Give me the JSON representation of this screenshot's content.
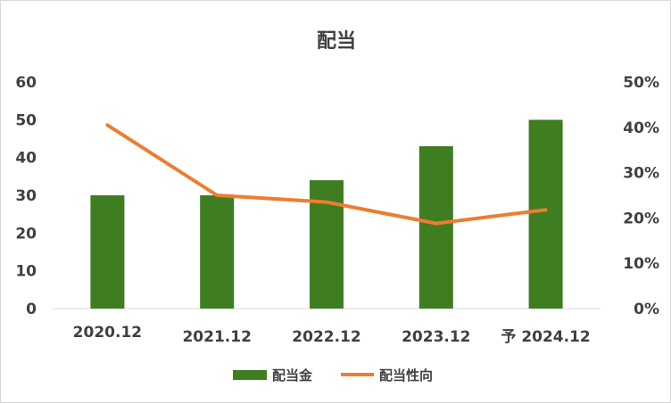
{
  "chart_data": {
    "type": "bar+line",
    "title": "配当",
    "categories": [
      "2020.12",
      "2021.12",
      "2022.12",
      "2023.12",
      "予 2024.12"
    ],
    "series": [
      {
        "name": "配当金",
        "type": "bar",
        "axis": "left",
        "color": "#3f7d21",
        "values": [
          30,
          30,
          34,
          43,
          50
        ]
      },
      {
        "name": "配当性向",
        "type": "line",
        "axis": "right",
        "color": "#ed7d31",
        "values": [
          0.405,
          0.25,
          0.235,
          0.188,
          0.218
        ]
      }
    ],
    "y_left": {
      "min": 0,
      "max": 60,
      "ticks": [
        "0",
        "10",
        "20",
        "30",
        "40",
        "50",
        "60"
      ]
    },
    "y_right": {
      "min": 0,
      "max": 0.5,
      "ticks": [
        "0%",
        "10%",
        "20%",
        "30%",
        "40%",
        "50%"
      ]
    },
    "grid": false,
    "legend": "bottom"
  }
}
